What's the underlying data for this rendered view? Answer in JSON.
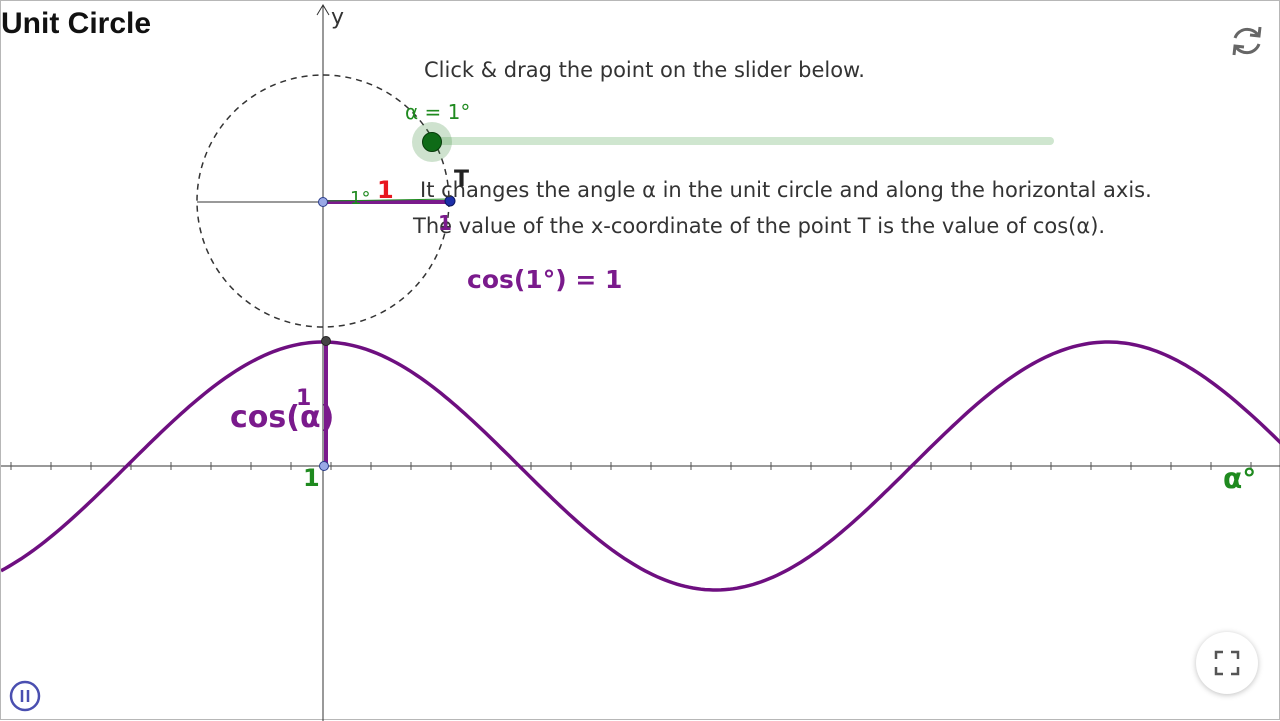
{
  "applet": {
    "title": "Unit Circle",
    "instruction_top": "Click & drag the point on the slider below.",
    "instruction_line1": "It changes the angle α in the unit circle and along the horizontal axis.",
    "instruction_line2": "The value of the x-coordinate of the point T is the value of cos(α).",
    "cos_readout": "cos(1°) = 1"
  },
  "slider": {
    "label": "α = 1°",
    "value_deg": 1,
    "min_deg": 0,
    "max_deg": 360
  },
  "axes": {
    "y_label": "y",
    "x_label": "α°"
  },
  "unit_circle": {
    "angle_label": "1°",
    "cos_label": "1",
    "t_label": "T",
    "segment_label": "1"
  },
  "graph": {
    "curve_label": "cos(α)",
    "value_label": "1",
    "origin_label": "1"
  },
  "colors": {
    "curve": "#6e0f80",
    "segment": "#7a1a8c",
    "slider": "#1f8a1f",
    "highlight": "#e8171f"
  },
  "icons": {
    "reset": "reset-icon",
    "fullscreen": "fullscreen-icon",
    "pause": "pause-icon"
  }
}
